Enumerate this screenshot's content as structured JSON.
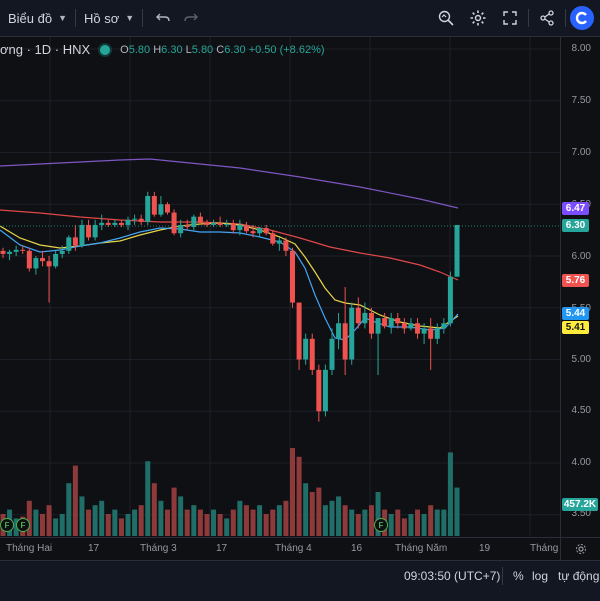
{
  "toolbar": {
    "chart_menu": "Biểu đồ",
    "profile_menu": "Hồ sơ"
  },
  "legend": {
    "symbol": "ơng · 1D · HNX",
    "o_label": "O",
    "o_value": "5.80",
    "h_label": "H",
    "h_value": "6.30",
    "l_label": "L",
    "l_value": "5.80",
    "c_label": "C",
    "c_value": "6.30",
    "change": "+0.50 (+8.62%)"
  },
  "price_axis": {
    "ticks": [
      "8.00",
      "7.50",
      "7.00",
      "6.50",
      "6.00",
      "5.50",
      "5.00",
      "4.50",
      "4.00",
      "3.50"
    ],
    "badges": {
      "purple": "6.47",
      "last": "6.30",
      "red": "5.76",
      "blue": "5.44",
      "yellow": "5.41",
      "volume": "457.2K"
    }
  },
  "time_axis": {
    "labels": [
      "Tháng Hai",
      "17",
      "Tháng 3",
      "17",
      "Tháng 4",
      "16",
      "Tháng Năm",
      "19",
      "Tháng"
    ]
  },
  "bottom_bar": {
    "time": "09:03:50 (UTC+7)",
    "percent": "%",
    "log": "log",
    "auto": "tự động"
  },
  "markers": {
    "f": "F"
  },
  "colors": {
    "up": "#26a69a",
    "down": "#ef5350",
    "ma_purple": "#7e57c2",
    "ma_red": "#e04848",
    "ma_yellow": "#e6d54a",
    "ma_blue": "#42a5f5",
    "background": "#0f1014"
  },
  "chart_data": {
    "type": "candlestick",
    "yrange": [
      3.5,
      8.0
    ],
    "candles": [
      [
        6.05,
        6.08,
        5.98,
        6.02
      ],
      [
        6.02,
        6.06,
        5.96,
        6.04
      ],
      [
        6.04,
        6.1,
        6.0,
        6.06
      ],
      [
        6.06,
        6.1,
        6.02,
        6.05
      ],
      [
        6.05,
        6.08,
        5.85,
        5.88
      ],
      [
        5.88,
        6.0,
        5.82,
        5.98
      ],
      [
        5.98,
        6.05,
        5.9,
        5.95
      ],
      [
        5.95,
        6.0,
        5.55,
        5.9
      ],
      [
        5.9,
        6.05,
        5.88,
        6.02
      ],
      [
        6.02,
        6.1,
        5.98,
        6.05
      ],
      [
        6.05,
        6.2,
        6.02,
        6.18
      ],
      [
        6.18,
        6.3,
        6.05,
        6.1
      ],
      [
        6.1,
        6.35,
        6.08,
        6.3
      ],
      [
        6.3,
        6.35,
        6.15,
        6.18
      ],
      [
        6.18,
        6.35,
        6.15,
        6.3
      ],
      [
        6.3,
        6.4,
        6.25,
        6.32
      ],
      [
        6.32,
        6.35,
        6.28,
        6.3
      ],
      [
        6.3,
        6.35,
        6.28,
        6.32
      ],
      [
        6.32,
        6.35,
        6.28,
        6.3
      ],
      [
        6.3,
        6.38,
        6.25,
        6.35
      ],
      [
        6.35,
        6.4,
        6.3,
        6.36
      ],
      [
        6.36,
        6.4,
        6.3,
        6.33
      ],
      [
        6.33,
        6.62,
        6.3,
        6.58
      ],
      [
        6.58,
        6.62,
        6.38,
        6.4
      ],
      [
        6.4,
        6.58,
        6.38,
        6.5
      ],
      [
        6.5,
        6.52,
        6.4,
        6.42
      ],
      [
        6.42,
        6.45,
        6.2,
        6.22
      ],
      [
        6.22,
        6.35,
        6.18,
        6.3
      ],
      [
        6.3,
        6.35,
        6.25,
        6.28
      ],
      [
        6.28,
        6.4,
        6.25,
        6.38
      ],
      [
        6.38,
        6.42,
        6.3,
        6.32
      ],
      [
        6.32,
        6.35,
        6.28,
        6.3
      ],
      [
        6.3,
        6.35,
        6.28,
        6.32
      ],
      [
        6.32,
        6.38,
        6.28,
        6.3
      ],
      [
        6.3,
        6.35,
        6.28,
        6.31
      ],
      [
        6.31,
        6.35,
        6.22,
        6.25
      ],
      [
        6.25,
        6.35,
        6.2,
        6.3
      ],
      [
        6.3,
        6.33,
        6.22,
        6.24
      ],
      [
        6.24,
        6.3,
        6.18,
        6.22
      ],
      [
        6.22,
        6.28,
        6.18,
        6.27
      ],
      [
        6.27,
        6.3,
        6.2,
        6.22
      ],
      [
        6.22,
        6.25,
        6.1,
        6.12
      ],
      [
        6.12,
        6.18,
        6.05,
        6.15
      ],
      [
        6.15,
        6.18,
        6.0,
        6.05
      ],
      [
        6.05,
        6.08,
        5.5,
        5.55
      ],
      [
        5.55,
        5.55,
        4.9,
        5.0
      ],
      [
        5.0,
        5.25,
        4.95,
        5.2
      ],
      [
        5.2,
        5.25,
        4.85,
        4.9
      ],
      [
        4.9,
        4.95,
        4.4,
        4.5
      ],
      [
        4.5,
        4.95,
        4.45,
        4.9
      ],
      [
        4.9,
        5.3,
        4.85,
        5.2
      ],
      [
        5.2,
        5.45,
        5.1,
        5.35
      ],
      [
        5.35,
        5.7,
        4.85,
        5.0
      ],
      [
        5.0,
        5.55,
        4.95,
        5.5
      ],
      [
        5.5,
        5.6,
        5.3,
        5.35
      ],
      [
        5.35,
        5.55,
        5.3,
        5.45
      ],
      [
        5.45,
        5.5,
        5.2,
        5.25
      ],
      [
        5.25,
        5.4,
        4.85,
        5.4
      ],
      [
        5.4,
        5.45,
        5.3,
        5.32
      ],
      [
        5.32,
        5.45,
        5.25,
        5.4
      ],
      [
        5.4,
        5.45,
        5.3,
        5.35
      ],
      [
        5.35,
        5.4,
        5.25,
        5.3
      ],
      [
        5.3,
        5.4,
        5.28,
        5.35
      ],
      [
        5.35,
        5.4,
        5.2,
        5.25
      ],
      [
        5.25,
        5.35,
        5.15,
        5.3
      ],
      [
        5.3,
        5.4,
        4.9,
        5.2
      ],
      [
        5.2,
        5.35,
        5.15,
        5.3
      ],
      [
        5.3,
        5.4,
        5.25,
        5.35
      ],
      [
        5.35,
        5.85,
        5.32,
        5.8
      ],
      [
        5.8,
        6.3,
        5.8,
        6.3
      ]
    ],
    "volumes": [
      0.25,
      0.3,
      0.2,
      0.22,
      0.4,
      0.3,
      0.25,
      0.35,
      0.2,
      0.25,
      0.6,
      0.8,
      0.45,
      0.3,
      0.35,
      0.4,
      0.25,
      0.3,
      0.2,
      0.25,
      0.3,
      0.35,
      0.85,
      0.6,
      0.4,
      0.3,
      0.55,
      0.45,
      0.3,
      0.35,
      0.3,
      0.25,
      0.3,
      0.25,
      0.2,
      0.3,
      0.4,
      0.35,
      0.3,
      0.35,
      0.25,
      0.3,
      0.35,
      0.4,
      1.0,
      0.9,
      0.6,
      0.5,
      0.55,
      0.35,
      0.4,
      0.45,
      0.35,
      0.3,
      0.25,
      0.3,
      0.35,
      0.5,
      0.3,
      0.25,
      0.3,
      0.2,
      0.25,
      0.3,
      0.25,
      0.35,
      0.3,
      0.3,
      0.95,
      0.55
    ]
  }
}
